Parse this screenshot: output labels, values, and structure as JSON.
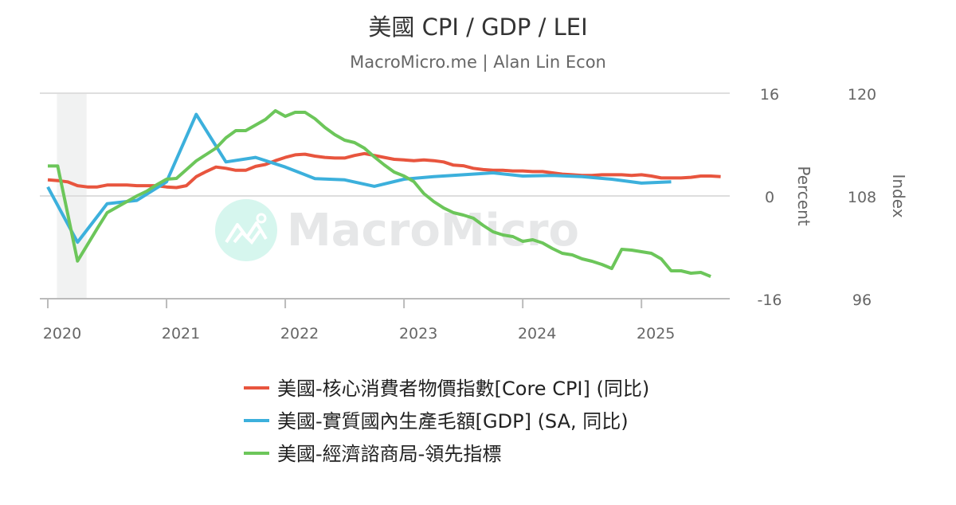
{
  "chart_data": {
    "type": "line",
    "title": "美國 CPI / GDP / LEI",
    "subtitle": "MacroMicro.me | Alan Lin Econ",
    "watermark": "MacroMicro",
    "x_start": "2020-01",
    "x_ticks": [
      "2020",
      "2021",
      "2022",
      "2023",
      "2024",
      "2025"
    ],
    "y_left": {
      "label": "Percent",
      "range": [
        -16,
        16
      ],
      "ticks": [
        "16",
        "0",
        "-16"
      ]
    },
    "y_right": {
      "label": "Index",
      "range": [
        96,
        120
      ],
      "ticks": [
        "120",
        "108",
        "96"
      ]
    },
    "recession_band": {
      "from_month": 1,
      "to_month": 4
    },
    "legend_position": "bottom",
    "series": [
      {
        "name": "美國-核心消費者物價指數[Core CPI] (同比)",
        "axis": "left",
        "frequency": "monthly",
        "color": "#e8553e",
        "values": [
          2.5,
          2.4,
          2.2,
          1.6,
          1.4,
          1.4,
          1.7,
          1.7,
          1.7,
          1.6,
          1.6,
          1.6,
          1.4,
          1.3,
          1.6,
          3.0,
          3.8,
          4.5,
          4.3,
          4.0,
          4.0,
          4.6,
          4.9,
          5.5,
          6.0,
          6.4,
          6.5,
          6.2,
          6.0,
          5.9,
          5.9,
          6.3,
          6.6,
          6.3,
          6.0,
          5.7,
          5.6,
          5.5,
          5.6,
          5.5,
          5.3,
          4.8,
          4.7,
          4.3,
          4.1,
          4.0,
          4.0,
          3.9,
          3.9,
          3.8,
          3.8,
          3.6,
          3.4,
          3.3,
          3.2,
          3.2,
          3.3,
          3.3,
          3.3,
          3.2,
          3.3,
          3.1,
          2.8,
          2.8,
          2.8,
          2.9,
          3.1,
          3.1,
          3.0
        ]
      },
      {
        "name": "美國-實質國內生產毛額[GDP] (SA, 同比)",
        "axis": "left",
        "frequency": "quarterly",
        "color": "#3cb0dc",
        "values": [
          1.4,
          -7.2,
          -1.2,
          -0.7,
          2.2,
          12.7,
          5.3,
          6.0,
          4.5,
          2.7,
          2.5,
          1.5,
          2.6,
          3.0,
          3.3,
          3.6,
          3.1,
          3.2,
          3.0,
          2.6,
          2.0,
          2.2
        ]
      },
      {
        "name": "美國-經濟諮商局-領先指標",
        "axis": "right",
        "frequency": "monthly",
        "color": "#6cc65a",
        "values": [
          111.5,
          111.5,
          106.0,
          100.4,
          102.3,
          104.2,
          106.05,
          106.7,
          107.35,
          108.0,
          108.56,
          109.3,
          109.95,
          110.05,
          111.07,
          112.09,
          112.84,
          113.58,
          114.79,
          115.63,
          115.63,
          116.28,
          116.93,
          117.95,
          117.3,
          117.77,
          117.77,
          117.02,
          116.0,
          115.16,
          114.51,
          114.23,
          113.58,
          112.56,
          111.63,
          110.79,
          110.33,
          109.67,
          108.28,
          107.35,
          106.6,
          106.05,
          105.77,
          105.4,
          104.56,
          103.81,
          103.44,
          103.26,
          102.7,
          102.88,
          102.51,
          101.86,
          101.3,
          101.12,
          100.65,
          100.37,
          100.0,
          99.53,
          101.77,
          101.67,
          101.49,
          101.3,
          100.65,
          99.26,
          99.26,
          98.98,
          99.07,
          98.6
        ]
      }
    ]
  }
}
